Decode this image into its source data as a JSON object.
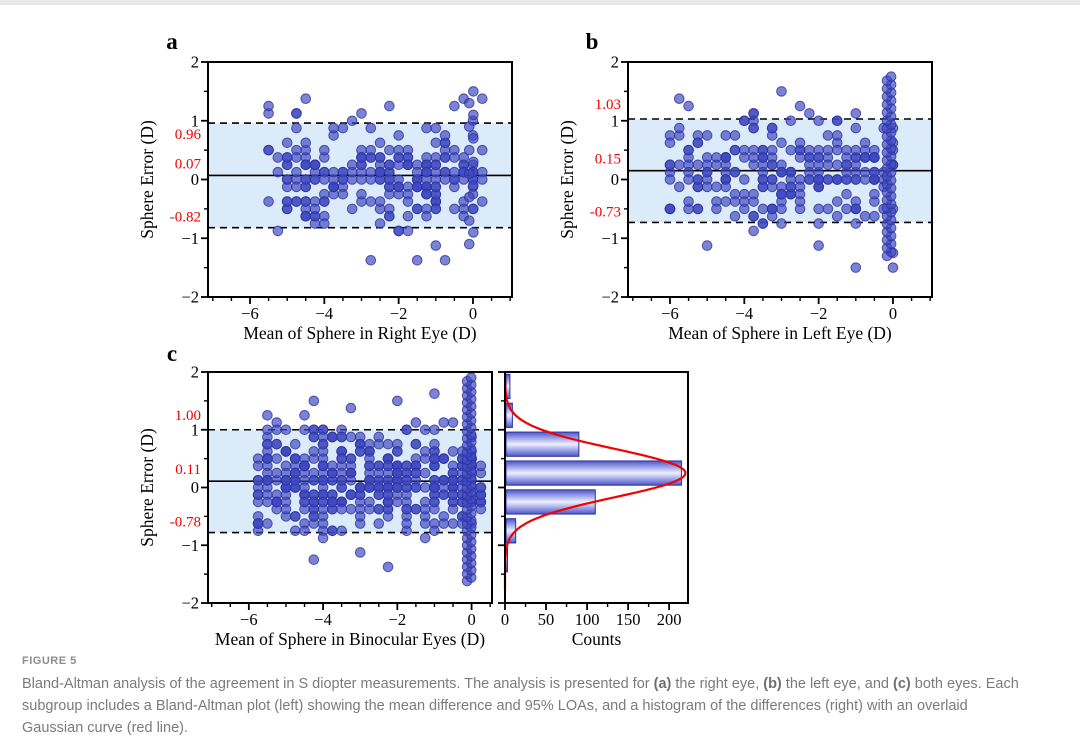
{
  "page": {
    "background": "#ffffff",
    "top_strip_color": "#e9e9eb"
  },
  "figure": {
    "label": "FIGURE 5",
    "caption_segments": [
      {
        "text": "Bland-Altman analysis of the agreement in S diopter measurements. The analysis is presented for ",
        "bold": false
      },
      {
        "text": "(a)",
        "bold": true
      },
      {
        "text": " the right eye, ",
        "bold": false
      },
      {
        "text": "(b)",
        "bold": true
      },
      {
        "text": " the left eye, and ",
        "bold": false
      },
      {
        "text": "(c)",
        "bold": true
      },
      {
        "text": " both eyes. Each subgroup includes a Bland-Altman plot (left) showing the mean difference and 95% LOAs, and a histogram of the differences (right) with an overlaid Gaussian curve (red line).",
        "bold": false
      }
    ]
  },
  "colors": {
    "dot_fill": "#3f48c0",
    "dot_stroke": "#2c32a0",
    "loa_band": "#dcebf9",
    "annotation_red": "#f40000",
    "axis": "#000000",
    "bar_edge": "#2c32a0",
    "bar_grad_dark": "#4e56c9",
    "bar_grad_mid": "#9ba3e8",
    "bar_grad_light": "#eef0fe",
    "gauss_curve": "#f40000"
  },
  "chart_data": [
    {
      "id": "a",
      "type": "scatter",
      "panel_label": "a",
      "xlabel": "Mean of Sphere in Right Eye (D)",
      "ylabel": "Sphere Error (D)",
      "xlim": [
        -7.13,
        1.05
      ],
      "xticks": [
        -6,
        -4,
        -2,
        0
      ],
      "ylim": [
        -2,
        2
      ],
      "yticks": [
        -2,
        -1,
        0,
        1,
        2
      ],
      "minor_tick_step": 0.5,
      "mean_diff": 0.07,
      "loa_upper": 0.96,
      "loa_lower": -0.82,
      "annotation_labels": {
        "upper": "0.96",
        "mean": "0.07",
        "lower": "-0.82"
      },
      "scatter_summary": {
        "n": 250,
        "x_min": -5.45,
        "x_max": 0.2,
        "col_n": 14,
        "col_x": -0.1,
        "col_y_min": -1.1,
        "col_y_max": 1.5,
        "y_clip": 1.55,
        "seed": 7
      }
    },
    {
      "id": "b",
      "type": "scatter",
      "panel_label": "b",
      "xlabel": "Mean of Sphere in Left Eye (D)",
      "ylabel": "Sphere Error (D)",
      "xlim": [
        -7.13,
        1.05
      ],
      "xticks": [
        -6,
        -4,
        -2,
        0
      ],
      "ylim": [
        -2,
        2
      ],
      "yticks": [
        -2,
        -1,
        0,
        1,
        2
      ],
      "minor_tick_step": 0.5,
      "mean_diff": 0.15,
      "loa_upper": 1.03,
      "loa_lower": -0.73,
      "annotation_labels": {
        "upper": "1.03",
        "mean": "0.15",
        "lower": "-0.73"
      },
      "scatter_summary": {
        "n": 250,
        "x_min": -6.1,
        "x_max": 0.15,
        "col_n": 46,
        "col_x": -0.16,
        "col_y_min": -1.3,
        "col_y_max": 1.75,
        "y_clip": 1.7,
        "seed": 13
      }
    },
    {
      "id": "c",
      "type": "scatter",
      "panel_label": "c",
      "xlabel": "Mean of Sphere in Binocular Eyes (D)",
      "ylabel": "Sphere Error (D)",
      "xlim": [
        -7.1,
        0.55
      ],
      "xticks": [
        -6,
        -4,
        -2,
        0
      ],
      "ylim": [
        -2,
        2
      ],
      "yticks": [
        -2,
        -1,
        0,
        1,
        2
      ],
      "minor_tick_step": 0.5,
      "mean_diff": 0.11,
      "loa_upper": 1.0,
      "loa_lower": -0.78,
      "annotation_labels": {
        "upper": "1.00",
        "mean": "0.11",
        "lower": "-0.78"
      },
      "scatter_summary": {
        "n": 430,
        "x_min": -5.8,
        "x_max": 0.2,
        "col_n": 58,
        "col_x": -0.12,
        "col_y_min": -1.62,
        "col_y_max": 1.9,
        "y_clip": 1.75,
        "seed": 29
      },
      "histogram": {
        "type": "bar",
        "orientation": "horizontal",
        "xlabel": "Counts",
        "xticks": [
          0,
          50,
          100,
          150,
          200
        ],
        "xlim": [
          0,
          223
        ],
        "minor_tick_step": 25,
        "bin_centers": [
          1.75,
          1.25,
          0.75,
          0.25,
          -0.25,
          -0.75,
          -1.25
        ],
        "counts": [
          6,
          9,
          90,
          215,
          110,
          13,
          2
        ],
        "bin_width": 0.5,
        "bar_thickness": 0.42,
        "gaussian": {
          "mu": 0.25,
          "sigma": 0.42,
          "peak": 220
        }
      }
    }
  ]
}
